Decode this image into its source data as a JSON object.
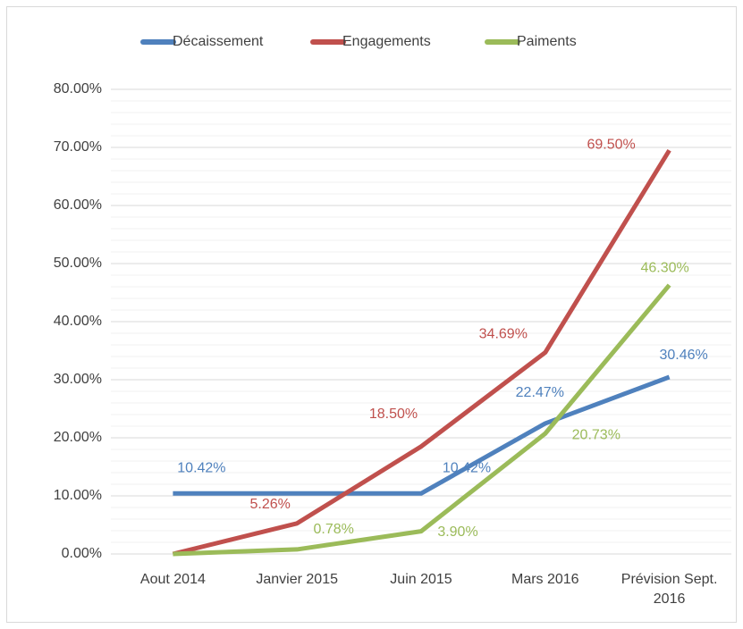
{
  "chart_data": {
    "type": "line",
    "categories": [
      "Aout 2014",
      "Janvier 2015",
      "Juin 2015",
      "Mars 2016",
      "Prévision Sept. 2016"
    ],
    "series": [
      {
        "name": "Décaissement",
        "color": "#4f81bd",
        "values": [
          10.42,
          10.42,
          10.42,
          22.47,
          30.46
        ],
        "value_labels": [
          "10.42%",
          null,
          "10.42%",
          "22.47%",
          "30.46%"
        ]
      },
      {
        "name": "Engagements",
        "color": "#c0504d",
        "values": [
          0,
          5.26,
          18.5,
          34.69,
          69.5
        ],
        "value_labels": [
          null,
          "5.26%",
          "18.50%",
          "34.69%",
          "69.50%"
        ]
      },
      {
        "name": "Paiments",
        "color": "#9bbb59",
        "values": [
          0,
          0.78,
          3.9,
          20.73,
          46.3
        ],
        "value_labels": [
          null,
          "0.78%",
          "3.90%",
          "20.73%",
          "46.30%"
        ]
      }
    ],
    "ylim": [
      0,
      80
    ],
    "yticks": [
      {
        "value": 0,
        "label": "0.00%"
      },
      {
        "value": 10,
        "label": "10.00%"
      },
      {
        "value": 20,
        "label": "20.00%"
      },
      {
        "value": 30,
        "label": "30.00%"
      },
      {
        "value": 40,
        "label": "40.00%"
      },
      {
        "value": 50,
        "label": "50.00%"
      },
      {
        "value": 60,
        "label": "60.00%"
      },
      {
        "value": 70,
        "label": "70.00%"
      },
      {
        "value": 80,
        "label": "80.00%"
      }
    ],
    "minor_yticks": [
      2,
      4,
      6,
      8,
      12,
      14,
      16,
      18,
      22,
      24,
      26,
      28,
      32,
      34,
      36,
      38,
      42,
      44,
      46,
      48,
      52,
      54,
      56,
      58,
      62,
      64,
      66,
      68,
      72,
      74,
      76,
      78
    ],
    "grid": true,
    "legend": "top"
  }
}
